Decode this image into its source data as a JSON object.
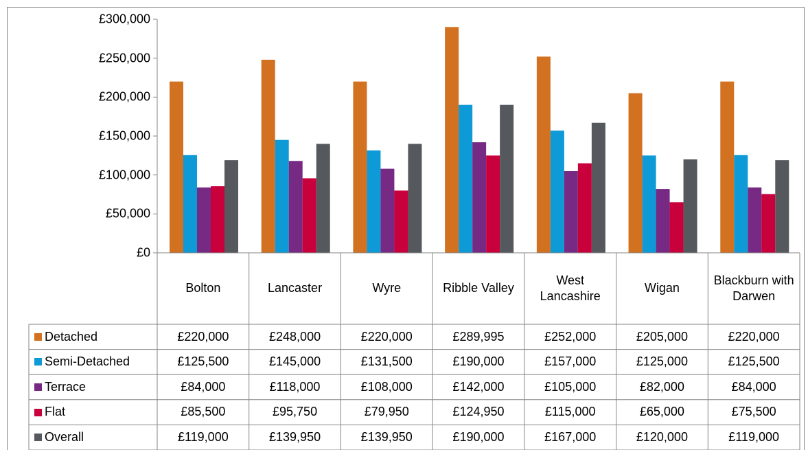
{
  "chart_data": {
    "type": "bar",
    "categories": [
      "Bolton",
      "Lancaster",
      "Wyre",
      "Ribble Valley",
      "West Lancashire",
      "Wigan",
      "Blackburn with Darwen"
    ],
    "series": [
      {
        "name": "Detached",
        "color": "#d2711f",
        "values": [
          220000,
          248000,
          220000,
          289995,
          252000,
          205000,
          220000
        ],
        "value_labels": [
          "£220,000",
          "£248,000",
          "£220,000",
          "£289,995",
          "£252,000",
          "£205,000",
          "£220,000"
        ]
      },
      {
        "name": "Semi-Detached",
        "color": "#0e9ad7",
        "values": [
          125500,
          145000,
          131500,
          190000,
          157000,
          125000,
          125500
        ],
        "value_labels": [
          "£125,500",
          "£145,000",
          "£131,500",
          "£190,000",
          "£157,000",
          "£125,000",
          "£125,500"
        ]
      },
      {
        "name": "Terrace",
        "color": "#772a84",
        "values": [
          84000,
          118000,
          108000,
          142000,
          105000,
          82000,
          84000
        ],
        "value_labels": [
          "£84,000",
          "£118,000",
          "£108,000",
          "£142,000",
          "£105,000",
          "£82,000",
          "£84,000"
        ]
      },
      {
        "name": "Flat",
        "color": "#c8003c",
        "values": [
          85500,
          95750,
          79950,
          124950,
          115000,
          65000,
          75500
        ],
        "value_labels": [
          "£85,500",
          "£95,750",
          "£79,950",
          "£124,950",
          "£115,000",
          "£65,000",
          "£75,500"
        ]
      },
      {
        "name": "Overall",
        "color": "#55585c",
        "values": [
          119000,
          139950,
          139950,
          190000,
          167000,
          120000,
          119000
        ],
        "value_labels": [
          "£119,000",
          "£139,950",
          "£139,950",
          "£190,000",
          "£167,000",
          "£120,000",
          "£119,000"
        ]
      }
    ],
    "ylim": [
      0,
      300000
    ],
    "yticks": [
      {
        "value": 0,
        "label": "£0"
      },
      {
        "value": 50000,
        "label": "£50,000"
      },
      {
        "value": 100000,
        "label": "£100,000"
      },
      {
        "value": 150000,
        "label": "£150,000"
      },
      {
        "value": 200000,
        "label": "£200,000"
      },
      {
        "value": 250000,
        "label": "£250,000"
      },
      {
        "value": 300000,
        "label": "£300,000"
      }
    ],
    "grid": false,
    "legend": "table"
  }
}
